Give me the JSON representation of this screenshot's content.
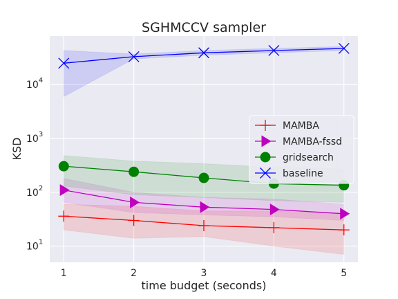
{
  "chart_data": {
    "type": "line",
    "title": "SGHMCCV sampler",
    "xlabel": "time budget (seconds)",
    "ylabel": "KSD",
    "x": [
      1,
      2,
      3,
      4,
      5
    ],
    "xlim": [
      0.8,
      5.2
    ],
    "yscale": "log",
    "ylim": [
      5,
      80000
    ],
    "x_ticks": [
      "1",
      "2",
      "3",
      "4",
      "5"
    ],
    "y_ticks": [
      {
        "value": 10,
        "base": "10",
        "exp": "1"
      },
      {
        "value": 100,
        "base": "10",
        "exp": "2"
      },
      {
        "value": 1000,
        "base": "10",
        "exp": "3"
      },
      {
        "value": 10000,
        "base": "10",
        "exp": "4"
      }
    ],
    "grid": true,
    "legend_position": "center-right",
    "series": [
      {
        "name": "MAMBA",
        "color": "#ff0000",
        "marker": "plus",
        "values": [
          36,
          30,
          24,
          22,
          20
        ],
        "lower": [
          20,
          14,
          15,
          10,
          7
        ],
        "upper": [
          60,
          55,
          45,
          45,
          40
        ]
      },
      {
        "name": "MAMBA-fssd",
        "color": "#bf00bf",
        "marker": "triangle-right",
        "values": [
          110,
          65,
          53,
          48,
          40
        ],
        "lower": [
          65,
          42,
          38,
          35,
          30
        ],
        "upper": [
          180,
          100,
          80,
          75,
          60
        ]
      },
      {
        "name": "gridsearch",
        "color": "#008000",
        "marker": "circle",
        "values": [
          305,
          240,
          185,
          145,
          135
        ],
        "lower": [
          130,
          90,
          80,
          70,
          65
        ],
        "upper": [
          480,
          380,
          340,
          290,
          270
        ]
      },
      {
        "name": "baseline",
        "color": "#0000ff",
        "marker": "x",
        "values": [
          25000,
          33000,
          39000,
          43000,
          47000
        ],
        "lower": [
          6000,
          30000,
          35000,
          39000,
          43000
        ],
        "upper": [
          43000,
          37000,
          43000,
          47000,
          51000
        ]
      }
    ]
  }
}
